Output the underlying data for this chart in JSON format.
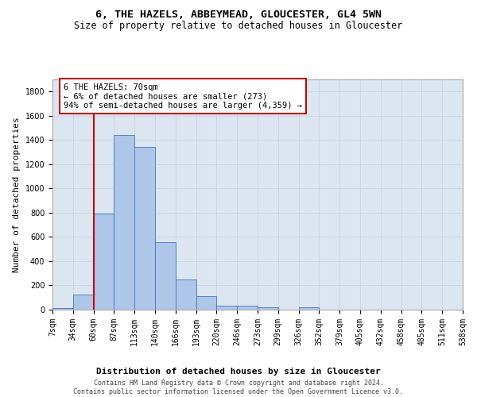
{
  "title1": "6, THE HAZELS, ABBEYMEAD, GLOUCESTER, GL4 5WN",
  "title2": "Size of property relative to detached houses in Gloucester",
  "xlabel": "Distribution of detached houses by size in Gloucester",
  "ylabel": "Number of detached properties",
  "bar_values": [
    15,
    125,
    790,
    1440,
    1345,
    555,
    250,
    110,
    35,
    30,
    20,
    0,
    20,
    0,
    0,
    0,
    0,
    0,
    0,
    0
  ],
  "bar_labels": [
    "7sqm",
    "34sqm",
    "60sqm",
    "87sqm",
    "113sqm",
    "140sqm",
    "166sqm",
    "193sqm",
    "220sqm",
    "246sqm",
    "273sqm",
    "299sqm",
    "326sqm",
    "352sqm",
    "379sqm",
    "405sqm",
    "432sqm",
    "458sqm",
    "485sqm",
    "511sqm",
    "538sqm"
  ],
  "bar_color": "#aec6e8",
  "bar_edge_color": "#4472c4",
  "vline_x": 1.5,
  "vline_color": "#cc0000",
  "annotation_text": "6 THE HAZELS: 70sqm\n← 6% of detached houses are smaller (273)\n94% of semi-detached houses are larger (4,359) →",
  "annotation_box_facecolor": "#ffffff",
  "annotation_box_edgecolor": "#cc0000",
  "ylim": [
    0,
    1900
  ],
  "yticks": [
    0,
    200,
    400,
    600,
    800,
    1000,
    1200,
    1400,
    1600,
    1800
  ],
  "grid_color": "#c8d4e3",
  "bg_color": "#dce6f1",
  "footer_text": "Contains HM Land Registry data © Crown copyright and database right 2024.\nContains public sector information licensed under the Open Government Licence v3.0.",
  "title_fontsize": 9.5,
  "subtitle_fontsize": 8.5,
  "xlabel_fontsize": 8,
  "ylabel_fontsize": 8,
  "tick_fontsize": 7,
  "annotation_fontsize": 7.5,
  "footer_fontsize": 6
}
